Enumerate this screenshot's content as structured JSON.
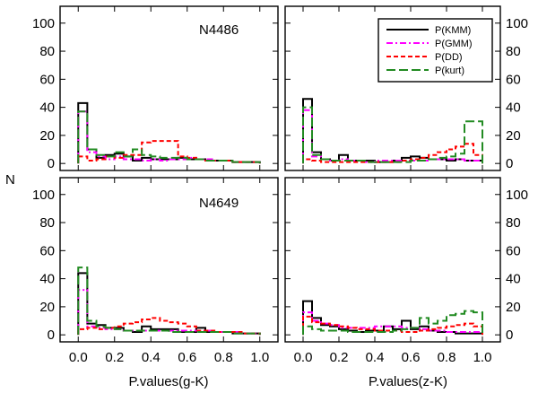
{
  "chart_data": {
    "type": "histogram",
    "ylabel": "N",
    "xticks": [
      "0.0",
      "0.2",
      "0.4",
      "0.6",
      "0.8",
      "1.0"
    ],
    "yticks": [
      "0",
      "20",
      "40",
      "60",
      "80",
      "100"
    ],
    "xlim": [
      -0.1,
      1.1
    ],
    "ylim": [
      -5,
      112
    ],
    "bin_edges": [
      0.0,
      0.05,
      0.1,
      0.15,
      0.2,
      0.25,
      0.3,
      0.35,
      0.4,
      0.45,
      0.5,
      0.55,
      0.6,
      0.65,
      0.7,
      0.75,
      0.8,
      0.85,
      0.9,
      0.95,
      1.0
    ],
    "legend": [
      {
        "name": "P(KMM)",
        "color": "#000000",
        "dash": "solid"
      },
      {
        "name": "P(GMM)",
        "color": "#ff00ff",
        "dash": "dashdot"
      },
      {
        "name": "P(DD)",
        "color": "#ff0000",
        "dash": "dashed"
      },
      {
        "name": "P(kurt)",
        "color": "#228b22",
        "dash": "longdash"
      }
    ],
    "panels": [
      {
        "id": "top-left",
        "label": "N4486",
        "xlabel": "",
        "series": {
          "P(KMM)": [
            43,
            10,
            4,
            6,
            7,
            5,
            2,
            4,
            3,
            3,
            3,
            4,
            3,
            3,
            2,
            2,
            2,
            1,
            1,
            1
          ],
          "P(GMM)": [
            37,
            8,
            5,
            3,
            5,
            3,
            3,
            2,
            3,
            2,
            3,
            3,
            4,
            3,
            3,
            2,
            2,
            1,
            1,
            1
          ],
          "P(DD)": [
            5,
            2,
            3,
            5,
            4,
            6,
            6,
            15,
            16,
            16,
            16,
            5,
            4,
            3,
            2,
            2,
            2,
            1,
            1,
            1
          ],
          "P(kurt)": [
            37,
            10,
            6,
            5,
            8,
            5,
            10,
            6,
            5,
            4,
            4,
            4,
            3,
            3,
            2,
            2,
            2,
            1,
            1,
            1
          ]
        }
      },
      {
        "id": "top-right",
        "label": "",
        "xlabel": "",
        "series": {
          "P(KMM)": [
            46,
            8,
            3,
            2,
            6,
            2,
            2,
            2,
            1,
            1,
            2,
            4,
            5,
            4,
            3,
            3,
            2,
            3,
            2,
            2
          ],
          "P(GMM)": [
            38,
            5,
            3,
            2,
            3,
            2,
            2,
            1,
            2,
            2,
            2,
            2,
            2,
            2,
            3,
            3,
            3,
            3,
            2,
            2
          ],
          "P(DD)": [
            3,
            2,
            1,
            1,
            1,
            1,
            1,
            1,
            1,
            1,
            1,
            2,
            3,
            4,
            6,
            8,
            10,
            12,
            14,
            6
          ],
          "P(kurt)": [
            40,
            6,
            3,
            2,
            2,
            2,
            2,
            1,
            1,
            1,
            1,
            1,
            2,
            2,
            3,
            4,
            5,
            7,
            30,
            30
          ]
        }
      },
      {
        "id": "bottom-left",
        "label": "N4649",
        "xlabel": "P.values(g-K)",
        "series": {
          "P(KMM)": [
            44,
            8,
            7,
            5,
            5,
            3,
            2,
            6,
            4,
            4,
            4,
            2,
            2,
            5,
            2,
            2,
            2,
            1,
            1,
            1
          ],
          "P(GMM)": [
            32,
            6,
            5,
            4,
            4,
            3,
            3,
            3,
            3,
            3,
            3,
            3,
            3,
            3,
            3,
            2,
            2,
            2,
            1,
            1
          ],
          "P(DD)": [
            4,
            5,
            4,
            5,
            6,
            8,
            9,
            11,
            12,
            10,
            9,
            8,
            6,
            3,
            3,
            2,
            2,
            2,
            1,
            1
          ],
          "P(kurt)": [
            48,
            10,
            6,
            5,
            4,
            3,
            3,
            3,
            3,
            3,
            2,
            2,
            2,
            2,
            2,
            2,
            2,
            1,
            1,
            1
          ]
        }
      },
      {
        "id": "bottom-right",
        "label": "",
        "xlabel": "P.values(z-K)",
        "series": {
          "P(KMM)": [
            24,
            12,
            7,
            6,
            4,
            3,
            2,
            3,
            3,
            6,
            4,
            10,
            4,
            6,
            3,
            2,
            2,
            1,
            1,
            1
          ],
          "P(GMM)": [
            16,
            10,
            8,
            7,
            5,
            5,
            5,
            5,
            6,
            6,
            6,
            5,
            5,
            4,
            3,
            3,
            2,
            2,
            2,
            2
          ],
          "P(DD)": [
            13,
            9,
            8,
            7,
            6,
            5,
            4,
            4,
            3,
            3,
            3,
            2,
            2,
            3,
            4,
            5,
            6,
            7,
            8,
            6
          ],
          "P(kurt)": [
            6,
            4,
            3,
            3,
            3,
            2,
            2,
            2,
            2,
            2,
            3,
            4,
            5,
            12,
            8,
            10,
            14,
            15,
            17,
            16
          ]
        }
      }
    ]
  }
}
